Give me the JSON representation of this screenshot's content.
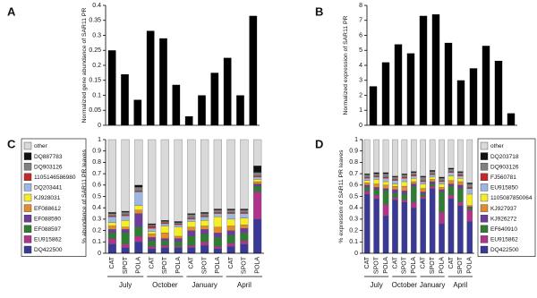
{
  "chart_data": [
    {
      "type": "bar",
      "panel": "A",
      "y_label": "Normalized gene abundance of SAR11 PR",
      "color": "#000000",
      "values": [
        0.25,
        0.17,
        0.085,
        0.315,
        0.29,
        0.135,
        0.03,
        0.1,
        0.175,
        0.225,
        0.1,
        0.365
      ],
      "ylim": [
        0,
        0.4
      ],
      "yticks": [
        0,
        0.05,
        0.1,
        0.15,
        0.2,
        0.25,
        0.3,
        0.35,
        0.4
      ]
    },
    {
      "type": "bar",
      "panel": "B",
      "y_label": "Normalized expression of SAR11 PR",
      "color": "#000000",
      "values": [
        2.6,
        4.2,
        5.4,
        4.8,
        7.3,
        7.4,
        5.5,
        3.0,
        3.8,
        5.3,
        4.3,
        0.8
      ],
      "ylim": [
        0,
        8
      ],
      "yticks": [
        0,
        1,
        2,
        3,
        4,
        5,
        6,
        7,
        8
      ]
    },
    {
      "type": "stacked_bar",
      "panel": "C",
      "y_label": "% abundance of SAR11 PR leaves",
      "categories": [
        "CAT",
        "SPOT",
        "POLA",
        "CAT",
        "SPOT",
        "POLA",
        "CAT",
        "SPOT",
        "POLA",
        "CAT",
        "SPOT",
        "POLA"
      ],
      "groups": [
        "July",
        "October",
        "January",
        "April"
      ],
      "ylim": [
        0,
        1
      ],
      "yticks": [
        0,
        0.1,
        0.2,
        0.3,
        0.4,
        0.5,
        0.6,
        0.7,
        0.8,
        0.9,
        1
      ],
      "series": [
        {
          "name": "DQ422500",
          "color": "#3a3a96",
          "values": [
            0.08,
            0.05,
            0.1,
            0.04,
            0.05,
            0.05,
            0.05,
            0.07,
            0.04,
            0.06,
            0.08,
            0.3
          ]
        },
        {
          "name": "EU915862",
          "color": "#b0348a",
          "values": [
            0.05,
            0.03,
            0.05,
            0.02,
            0.02,
            0.01,
            0.02,
            0.03,
            0.02,
            0.03,
            0.03,
            0.24
          ]
        },
        {
          "name": "EF088597",
          "color": "#2e7d32",
          "values": [
            0.05,
            0.1,
            0.08,
            0.05,
            0.04,
            0.04,
            0.08,
            0.07,
            0.08,
            0.07,
            0.07,
            0.05
          ]
        },
        {
          "name": "EF088590",
          "color": "#6a3d9a",
          "values": [
            0.03,
            0.03,
            0.12,
            0.03,
            0.02,
            0.03,
            0.05,
            0.04,
            0.04,
            0.04,
            0.04,
            0.02
          ]
        },
        {
          "name": "EF088612",
          "color": "#e38b2c",
          "values": [
            0.03,
            0.02,
            0.03,
            0.03,
            0.05,
            0.02,
            0.03,
            0.03,
            0.05,
            0.04,
            0.03,
            0.02
          ]
        },
        {
          "name": "KJ928031",
          "color": "#f5ec2a",
          "values": [
            0.03,
            0.06,
            0.04,
            0.02,
            0.06,
            0.08,
            0.05,
            0.05,
            0.09,
            0.06,
            0.06,
            0.02
          ]
        },
        {
          "name": "DQ203441",
          "color": "#9db7e0",
          "values": [
            0.05,
            0.04,
            0.12,
            0.03,
            0.02,
            0.02,
            0.02,
            0.03,
            0.03,
            0.05,
            0.04,
            0.02
          ]
        },
        {
          "name": "1105146586980",
          "color": "#c62828",
          "values": [
            0.01,
            0.01,
            0.01,
            0.02,
            0.01,
            0.01,
            0.01,
            0.01,
            0.01,
            0.01,
            0.01,
            0.01
          ]
        },
        {
          "name": "DQ903126",
          "color": "#808080",
          "values": [
            0.02,
            0.02,
            0.03,
            0.01,
            0.01,
            0.01,
            0.03,
            0.02,
            0.02,
            0.02,
            0.02,
            0.03
          ]
        },
        {
          "name": "DQ887783",
          "color": "#111111",
          "values": [
            0.01,
            0.01,
            0.02,
            0.01,
            0.01,
            0.01,
            0.01,
            0.01,
            0.01,
            0.01,
            0.01,
            0.06
          ]
        },
        {
          "name": "other",
          "color": "#d9d9d9",
          "values": [
            0.64,
            0.63,
            0.4,
            0.74,
            0.71,
            0.72,
            0.65,
            0.64,
            0.61,
            0.61,
            0.61,
            0.23
          ]
        }
      ]
    },
    {
      "type": "stacked_bar",
      "panel": "D",
      "y_label": "% expression of SAR11 PR leaves",
      "categories": [
        "CAT",
        "SPOT",
        "POLA",
        "CAT",
        "SPOT",
        "POLA",
        "CAT",
        "SPOT",
        "POLA",
        "CAT",
        "SPOT",
        "POLA"
      ],
      "groups": [
        "July",
        "October",
        "January",
        "April"
      ],
      "ylim": [
        0,
        1
      ],
      "yticks": [
        0,
        0.1,
        0.2,
        0.3,
        0.4,
        0.5,
        0.6,
        0.7,
        0.8,
        0.9,
        1
      ],
      "series": [
        {
          "name": "DQ422500",
          "color": "#3a3a96",
          "values": [
            0.52,
            0.48,
            0.33,
            0.47,
            0.45,
            0.4,
            0.48,
            0.57,
            0.26,
            0.48,
            0.42,
            0.28
          ]
        },
        {
          "name": "EU915862",
          "color": "#b0348a",
          "values": [
            0.03,
            0.03,
            0.1,
            0.02,
            0.02,
            0.05,
            0.02,
            0.02,
            0.1,
            0.03,
            0.03,
            0.1
          ]
        },
        {
          "name": "EF640910",
          "color": "#2e7d32",
          "values": [
            0.03,
            0.05,
            0.12,
            0.04,
            0.05,
            0.14,
            0.02,
            0.02,
            0.18,
            0.08,
            0.12,
            0.02
          ]
        },
        {
          "name": "KJ926272",
          "color": "#6a3d9a",
          "values": [
            0.02,
            0.02,
            0.02,
            0.03,
            0.03,
            0.02,
            0.02,
            0.02,
            0.02,
            0.02,
            0.03,
            0.01
          ]
        },
        {
          "name": "KJ927937",
          "color": "#e38b2c",
          "values": [
            0.02,
            0.03,
            0.03,
            0.03,
            0.04,
            0.02,
            0.03,
            0.02,
            0.02,
            0.03,
            0.03,
            0.01
          ]
        },
        {
          "name": "1105087850064",
          "color": "#f5ec2a",
          "values": [
            0.02,
            0.04,
            0.03,
            0.02,
            0.04,
            0.03,
            0.04,
            0.02,
            0.03,
            0.04,
            0.03,
            0.1
          ]
        },
        {
          "name": "EU915850",
          "color": "#9db7e0",
          "values": [
            0.02,
            0.02,
            0.03,
            0.03,
            0.03,
            0.02,
            0.02,
            0.02,
            0.02,
            0.03,
            0.02,
            0.05
          ]
        },
        {
          "name": "FJ560781",
          "color": "#c62828",
          "values": [
            0.01,
            0.01,
            0.01,
            0.01,
            0.01,
            0.01,
            0.01,
            0.01,
            0.01,
            0.01,
            0.01,
            0.01
          ]
        },
        {
          "name": "DQ903126",
          "color": "#808080",
          "values": [
            0.02,
            0.02,
            0.03,
            0.02,
            0.02,
            0.02,
            0.03,
            0.02,
            0.02,
            0.02,
            0.02,
            0.03
          ]
        },
        {
          "name": "DQ203718",
          "color": "#111111",
          "values": [
            0.01,
            0.01,
            0.01,
            0.01,
            0.01,
            0.01,
            0.01,
            0.01,
            0.01,
            0.01,
            0.01,
            0.01
          ]
        },
        {
          "name": "other",
          "color": "#d9d9d9",
          "values": [
            0.3,
            0.29,
            0.29,
            0.32,
            0.3,
            0.28,
            0.32,
            0.27,
            0.33,
            0.25,
            0.28,
            0.38
          ]
        }
      ]
    }
  ]
}
